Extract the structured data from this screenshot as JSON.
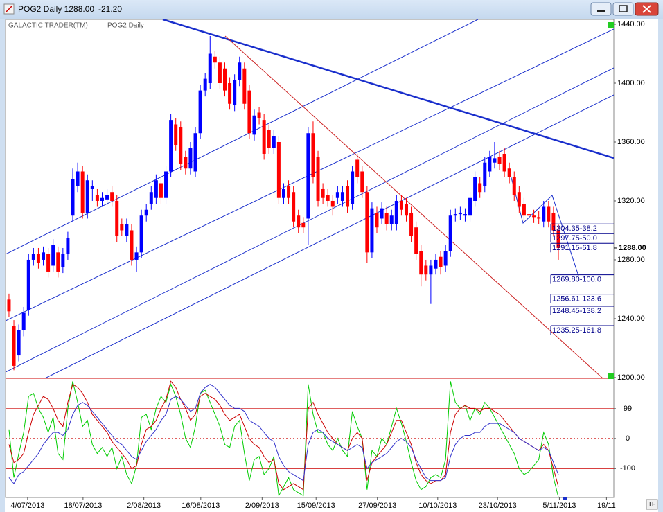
{
  "window": {
    "title": "POG2 Daily 1288.00",
    "change": "-21.20",
    "tf_button": "TF"
  },
  "chart_data": [
    {
      "type": "candlestick",
      "title": "GALACTIC TRADER(TM)",
      "subtitle": "POG2 Daily",
      "up_color": "#0000ff",
      "down_color": "#ff0000",
      "open": [
        1253,
        1235,
        1215,
        1232,
        1246,
        1280,
        1284,
        1280,
        1284,
        1276,
        1285,
        1275,
        1284,
        1310,
        1330,
        1340,
        1312,
        1328,
        1324,
        1320,
        1321,
        1326,
        1320,
        1304,
        1296,
        1300,
        1280,
        1285,
        1310,
        1318,
        1322,
        1332,
        1322,
        1340,
        1372,
        1370,
        1350,
        1342,
        1340,
        1366,
        1395,
        1400,
        1418,
        1414,
        1410,
        1400,
        1385,
        1402,
        1410,
        1395,
        1365,
        1380,
        1375,
        1368,
        1356,
        1360,
        1322,
        1330,
        1326,
        1310,
        1305,
        1308,
        1366,
        1350,
        1328,
        1324,
        1320,
        1322,
        1320,
        1330,
        1318,
        1348,
        1340,
        1326,
        1285,
        1312,
        1308,
        1312,
        1304,
        1304,
        1320,
        1318,
        1312,
        1302,
        1286,
        1276,
        1270,
        1274,
        1282,
        1276,
        1286,
        1310,
        1311,
        1310,
        1310,
        1320,
        1332,
        1330,
        1340,
        1346,
        1350,
        1352,
        1342,
        1336,
        1326,
        1318,
        1311,
        1310,
        1309,
        1306,
        1316,
        1312,
        1300
      ],
      "close": [
        1245,
        1208,
        1232,
        1244,
        1280,
        1284,
        1278,
        1285,
        1272,
        1290,
        1272,
        1284,
        1295,
        1335,
        1340,
        1312,
        1334,
        1330,
        1320,
        1322,
        1324,
        1320,
        1296,
        1300,
        1304,
        1280,
        1285,
        1310,
        1314,
        1326,
        1334,
        1322,
        1340,
        1375,
        1358,
        1345,
        1342,
        1356,
        1366,
        1395,
        1403,
        1420,
        1414,
        1400,
        1395,
        1386,
        1402,
        1414,
        1386,
        1366,
        1378,
        1376,
        1352,
        1356,
        1364,
        1322,
        1328,
        1322,
        1306,
        1302,
        1302,
        1366,
        1336,
        1320,
        1322,
        1320,
        1316,
        1326,
        1326,
        1316,
        1340,
        1336,
        1326,
        1285,
        1315,
        1302,
        1315,
        1304,
        1310,
        1320,
        1314,
        1310,
        1296,
        1284,
        1270,
        1270,
        1276,
        1280,
        1275,
        1286,
        1310,
        1311,
        1312,
        1311,
        1322,
        1336,
        1326,
        1346,
        1350,
        1349,
        1345,
        1340,
        1336,
        1324,
        1316,
        1310,
        1310,
        1309,
        1308,
        1316,
        1306,
        1300,
        1288
      ],
      "high": [
        1257,
        1239,
        1236,
        1248,
        1284,
        1288,
        1288,
        1289,
        1288,
        1294,
        1289,
        1288,
        1299,
        1342,
        1346,
        1344,
        1338,
        1334,
        1328,
        1326,
        1328,
        1330,
        1324,
        1308,
        1308,
        1304,
        1289,
        1314,
        1318,
        1330,
        1338,
        1336,
        1344,
        1379,
        1376,
        1374,
        1354,
        1360,
        1370,
        1399,
        1407,
        1432,
        1422,
        1418,
        1414,
        1404,
        1406,
        1418,
        1414,
        1399,
        1382,
        1384,
        1379,
        1372,
        1368,
        1364,
        1332,
        1334,
        1330,
        1314,
        1309,
        1370,
        1374,
        1354,
        1332,
        1328,
        1324,
        1330,
        1330,
        1334,
        1344,
        1352,
        1344,
        1330,
        1319,
        1316,
        1319,
        1316,
        1314,
        1324,
        1324,
        1322,
        1316,
        1306,
        1290,
        1280,
        1280,
        1284,
        1286,
        1290,
        1314,
        1315,
        1316,
        1315,
        1326,
        1340,
        1336,
        1350,
        1354,
        1360,
        1354,
        1356,
        1346,
        1340,
        1330,
        1322,
        1315,
        1314,
        1313,
        1320,
        1320,
        1316,
        1304
      ],
      "low": [
        1241,
        1205,
        1211,
        1228,
        1242,
        1276,
        1274,
        1276,
        1268,
        1272,
        1268,
        1271,
        1280,
        1306,
        1326,
        1308,
        1308,
        1320,
        1316,
        1316,
        1317,
        1316,
        1292,
        1296,
        1292,
        1276,
        1272,
        1281,
        1306,
        1314,
        1318,
        1318,
        1318,
        1336,
        1354,
        1341,
        1338,
        1338,
        1336,
        1362,
        1391,
        1396,
        1410,
        1396,
        1391,
        1382,
        1381,
        1398,
        1382,
        1362,
        1361,
        1372,
        1348,
        1352,
        1352,
        1318,
        1318,
        1318,
        1302,
        1298,
        1298,
        1290,
        1332,
        1316,
        1318,
        1316,
        1310,
        1318,
        1316,
        1312,
        1314,
        1332,
        1322,
        1278,
        1281,
        1298,
        1304,
        1300,
        1300,
        1300,
        1310,
        1306,
        1292,
        1280,
        1262,
        1266,
        1250,
        1270,
        1270,
        1272,
        1282,
        1306,
        1307,
        1306,
        1306,
        1316,
        1322,
        1326,
        1336,
        1342,
        1341,
        1336,
        1332,
        1320,
        1312,
        1306,
        1306,
        1305,
        1304,
        1302,
        1302,
        1296,
        1280
      ],
      "xlim": [
        -0.7,
        123.3
      ],
      "ylim": [
        1199.5,
        1443.3
      ],
      "yticks": [
        {
          "value": 1200,
          "label": "1200.00"
        },
        {
          "value": 1240,
          "label": "1240.00"
        },
        {
          "value": 1280,
          "label": "1280.00"
        },
        {
          "value": 1320,
          "label": "1320.00"
        },
        {
          "value": 1360,
          "label": "1360.00"
        },
        {
          "value": 1400,
          "label": "1400.00"
        },
        {
          "value": 1440,
          "label": "1440.00"
        }
      ],
      "grid": false,
      "last_price": 1288,
      "last_price_label": "1288.00",
      "levels": [
        {
          "value": 1304.35,
          "label": "1304.35-38.2"
        },
        {
          "value": 1297.75,
          "label": "1297.75-50.0"
        },
        {
          "value": 1291.15,
          "label": "1291.15-61.8"
        },
        {
          "value": 1269.8,
          "label": "1269.80-100.0"
        },
        {
          "value": 1256.61,
          "label": "1256.61-123.6"
        },
        {
          "value": 1248.45,
          "label": "1248.45-138.2"
        },
        {
          "value": 1235.25,
          "label": "1235.25-161.8"
        }
      ]
    },
    {
      "type": "line",
      "series": [
        {
          "color": "#00cc00",
          "values": [
            30,
            -130,
            -50,
            20,
            140,
            150,
            100,
            70,
            20,
            70,
            -50,
            -70,
            100,
            190,
            120,
            40,
            60,
            -20,
            -50,
            -30,
            -60,
            -30,
            -100,
            -60,
            -120,
            -150,
            -90,
            70,
            80,
            30,
            100,
            140,
            120,
            180,
            140,
            80,
            0,
            -30,
            40,
            150,
            160,
            120,
            80,
            40,
            -20,
            -30,
            40,
            60,
            -50,
            -140,
            -70,
            -60,
            -120,
            -100,
            -60,
            -190,
            -160,
            -130,
            -170,
            -180,
            -190,
            180,
            80,
            20,
            20,
            -20,
            -40,
            0,
            -40,
            -60,
            90,
            40,
            0,
            -170,
            -40,
            -60,
            0,
            -20,
            40,
            100,
            50,
            -10,
            -80,
            -140,
            -170,
            -160,
            -130,
            -120,
            -130,
            -70,
            190,
            120,
            100,
            110,
            60,
            100,
            80,
            120,
            100,
            70,
            40,
            10,
            -20,
            -50,
            -100,
            -120,
            -110,
            -90,
            -70,
            20,
            -20,
            -130,
            -195
          ]
        },
        {
          "color": "#cc0000",
          "values": [
            -20,
            -80,
            -70,
            -50,
            20,
            80,
            110,
            140,
            130,
            100,
            60,
            40,
            120,
            180,
            170,
            150,
            120,
            80,
            60,
            40,
            20,
            -10,
            -30,
            -50,
            -70,
            -100,
            -90,
            -20,
            30,
            40,
            60,
            100,
            130,
            190,
            170,
            130,
            100,
            60,
            80,
            140,
            150,
            140,
            130,
            110,
            80,
            60,
            70,
            80,
            40,
            0,
            -20,
            -30,
            -60,
            -80,
            -70,
            -150,
            -170,
            -160,
            -150,
            -160,
            -170,
            100,
            120,
            80,
            50,
            20,
            0,
            -20,
            -30,
            -40,
            0,
            20,
            0,
            -140,
            -80,
            -60,
            -40,
            -20,
            20,
            60,
            60,
            20,
            -20,
            -80,
            -120,
            -140,
            -150,
            -140,
            -140,
            -120,
            20,
            80,
            100,
            110,
            100,
            100,
            90,
            100,
            100,
            90,
            80,
            60,
            40,
            20,
            0,
            -10,
            -20,
            -30,
            -40,
            -20,
            -40,
            -100,
            -160
          ]
        },
        {
          "color": "#3333cc",
          "values": [
            -130,
            -150,
            -120,
            -110,
            -90,
            -70,
            -50,
            -20,
            0,
            20,
            20,
            10,
            30,
            80,
            110,
            120,
            110,
            90,
            70,
            50,
            30,
            10,
            -10,
            -20,
            -40,
            -60,
            -70,
            -40,
            -10,
            10,
            30,
            60,
            80,
            130,
            140,
            130,
            110,
            90,
            100,
            150,
            170,
            180,
            170,
            150,
            130,
            110,
            100,
            100,
            90,
            60,
            50,
            40,
            20,
            0,
            -10,
            -60,
            -90,
            -110,
            -120,
            -130,
            -140,
            -20,
            20,
            30,
            20,
            0,
            -10,
            -20,
            -30,
            -40,
            -30,
            -20,
            -30,
            -100,
            -80,
            -70,
            -60,
            -50,
            -30,
            -10,
            0,
            -10,
            -30,
            -70,
            -100,
            -130,
            -140,
            -140,
            -140,
            -130,
            -60,
            -20,
            0,
            10,
            10,
            20,
            20,
            40,
            50,
            50,
            50,
            40,
            30,
            20,
            0,
            -10,
            -20,
            -30,
            -40,
            -30,
            -40,
            -80,
            -120
          ]
        }
      ],
      "xlim": [
        -0.7,
        123.3
      ],
      "ylim": [
        -196,
        200
      ],
      "yticks": [
        99,
        0,
        -100
      ],
      "grid": true,
      "xticks": [
        {
          "value": 3.8,
          "label": "4/07/2013"
        },
        {
          "value": 15.1,
          "label": "18/07/2013"
        },
        {
          "value": 27.5,
          "label": "2/08/2013"
        },
        {
          "value": 39.1,
          "label": "16/08/2013"
        },
        {
          "value": 51.6,
          "label": "2/09/2013"
        },
        {
          "value": 62.6,
          "label": "15/09/2013"
        },
        {
          "value": 75.1,
          "label": "27/09/2013"
        },
        {
          "value": 87.4,
          "label": "10/10/2013"
        },
        {
          "value": 99.6,
          "label": "23/10/2013"
        },
        {
          "value": 112.2,
          "label": "5/11/2013"
        },
        {
          "value": 121.8,
          "label": "19/11"
        }
      ]
    }
  ]
}
